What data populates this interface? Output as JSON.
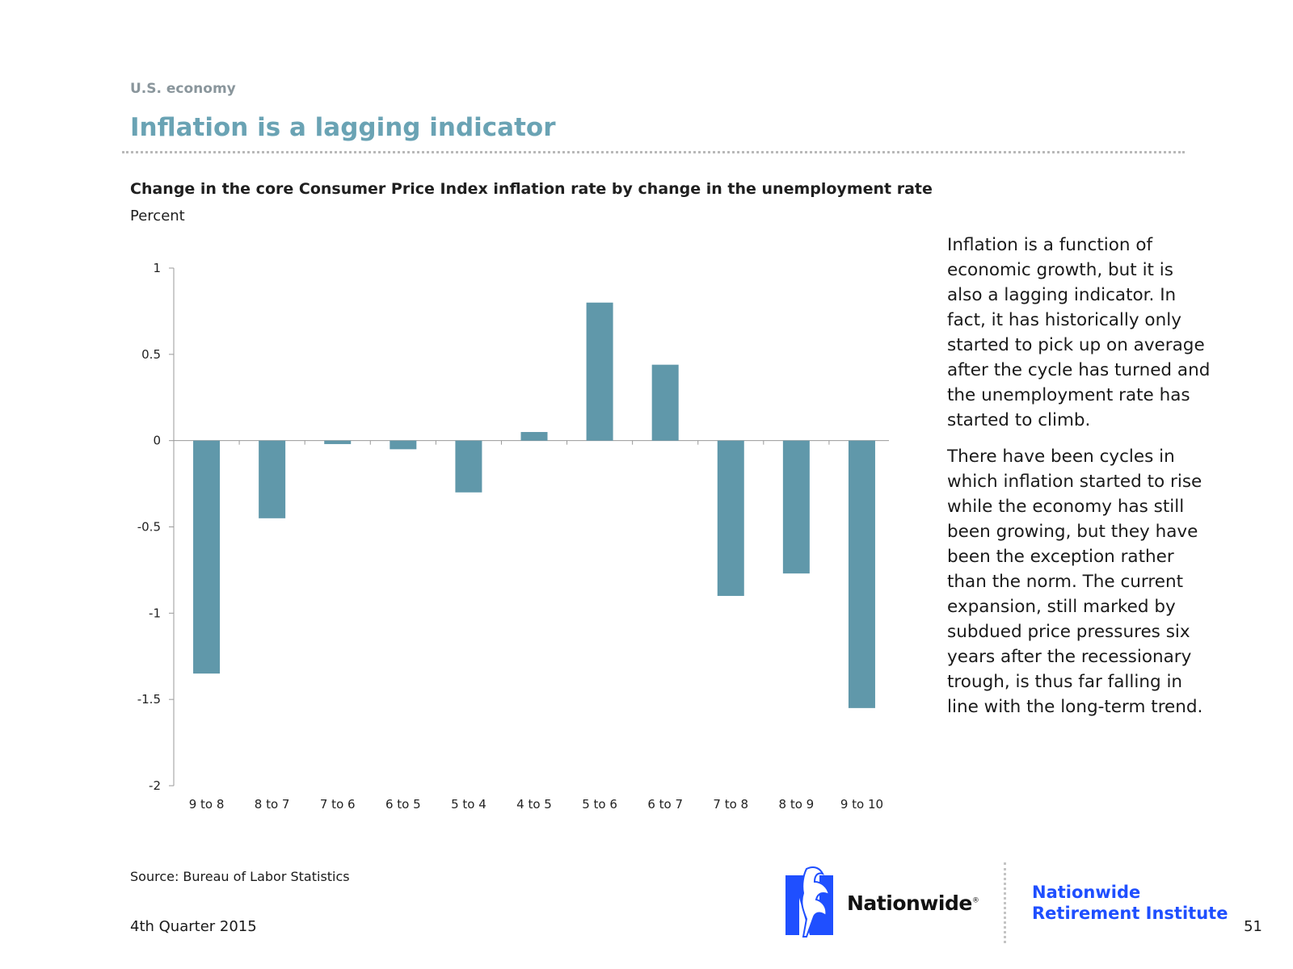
{
  "header": {
    "section_label": "U.S. economy",
    "title": "Inflation is a lagging indicator"
  },
  "chart_data": {
    "type": "bar",
    "title": "Change in the core Consumer Price Index inflation rate by change in the unemployment rate",
    "unit": "Percent",
    "categories": [
      "9 to 8",
      "8 to 7",
      "7 to 6",
      "6 to 5",
      "5 to 4",
      "4 to 5",
      "5 to 6",
      "6 to 7",
      "7 to 8",
      "8 to 9",
      "9 to 10"
    ],
    "values": [
      -1.35,
      -0.45,
      -0.02,
      -0.05,
      -0.3,
      0.05,
      0.8,
      0.44,
      -0.9,
      -0.77,
      -1.55
    ],
    "ylim": [
      -2,
      1
    ],
    "yticks": [
      1,
      0.5,
      0,
      -0.5,
      -1,
      -1.5,
      -2
    ],
    "ytick_labels": [
      "1",
      "0.5",
      "0",
      "-0.5",
      "-1",
      "-1.5",
      "-2"
    ],
    "bar_color": "#6098aa",
    "grid": false,
    "legend": "none"
  },
  "commentary": {
    "paragraph_1": "Inflation is a function of economic growth, but it is also a lagging indicator. In fact, it has historically only started to pick up on average after the cycle has turned and the unemployment rate has started to climb.",
    "paragraph_2": "There have been cycles in which inflation started to rise while the economy has still been growing, but they have been the exception rather than the norm. The current expansion, still marked by subdued price pressures six years after the recessionary trough, is thus far falling in line with the long-term trend."
  },
  "footer": {
    "source": "Source: Bureau of Labor Statistics",
    "quarter": "4th Quarter 2015",
    "page_number": "51",
    "logo_text": "Nationwide",
    "logo_mark": "®",
    "institute_line1": "Nationwide",
    "institute_line2": "Retirement Institute",
    "brand_color": "#1f4fff",
    "accent_color": "#6aa3b4"
  }
}
